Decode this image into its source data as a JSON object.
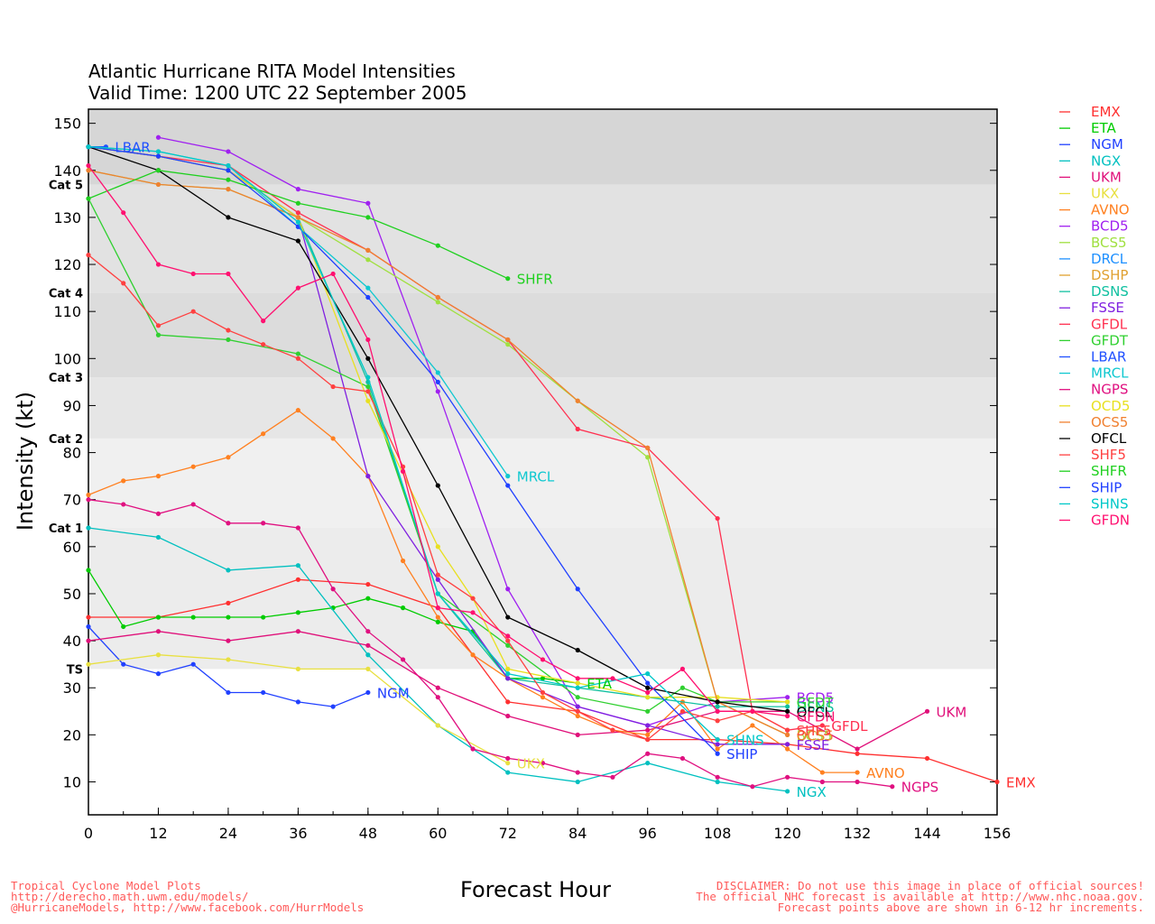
{
  "title_line1": "Atlantic Hurricane RITA Model Intensities",
  "title_line2": "Valid Time: 1200 UTC 22 September 2005",
  "footer_left": [
    "Tropical Cyclone Model Plots",
    "http://derecho.math.uwm.edu/models/",
    "@HurricaneModels, http://www.facebook.com/HurrModels"
  ],
  "footer_right": [
    "DISCLAIMER: Do not use this image in place of official sources!",
    "The official NHC forecast is available at http://www.nhc.noaa.gov.",
    "Forecast points above are shown in 6-12 hr increments."
  ],
  "chart_data": {
    "type": "line",
    "title": "Atlantic Hurricane RITA Model Intensities",
    "subtitle": "Valid Time: 1200 UTC 22 September 2005",
    "xlabel": "Forecast Hour",
    "ylabel": "Intensity (kt)",
    "xlim": [
      0,
      156
    ],
    "ylim": [
      3,
      153
    ],
    "xticks": [
      0,
      12,
      24,
      36,
      48,
      60,
      72,
      84,
      96,
      108,
      120,
      132,
      144,
      156
    ],
    "yticks": [
      10,
      20,
      30,
      40,
      50,
      60,
      70,
      80,
      90,
      100,
      110,
      120,
      130,
      140,
      150
    ],
    "categories": [
      {
        "label": "TS",
        "lo": 34,
        "hi": 64,
        "color": "#ececec"
      },
      {
        "label": "Cat 1",
        "lo": 64,
        "hi": 83,
        "color": "#f0f0f0"
      },
      {
        "label": "Cat 2",
        "lo": 83,
        "hi": 96,
        "color": "#e6e6e6"
      },
      {
        "label": "Cat 3",
        "lo": 96,
        "hi": 114,
        "color": "#dcdcdc"
      },
      {
        "label": "Cat 4",
        "lo": 114,
        "hi": 137,
        "color": "#e2e2e2"
      },
      {
        "label": "Cat 5",
        "lo": 137,
        "hi": 153,
        "color": "#d6d6d6"
      }
    ],
    "category_labels": [
      {
        "label": "TS",
        "y": 34
      },
      {
        "label": "Cat 1",
        "y": 64
      },
      {
        "label": "Cat 2",
        "y": 83
      },
      {
        "label": "Cat 3",
        "y": 96
      },
      {
        "label": "Cat 4",
        "y": 114
      },
      {
        "label": "Cat 5",
        "y": 137
      }
    ],
    "series": [
      {
        "name": "EMX",
        "color": "#ff3030",
        "label": "EMX",
        "x": [
          0,
          12,
          24,
          36,
          48,
          60,
          72,
          84,
          96,
          108,
          120,
          132,
          144,
          156
        ],
        "y": [
          45,
          45,
          48,
          53,
          52,
          47,
          27,
          25,
          19,
          19,
          18,
          16,
          15,
          10
        ]
      },
      {
        "name": "ETA",
        "color": "#00cc00",
        "label": "ETA",
        "x": [
          0,
          6,
          12,
          18,
          24,
          30,
          36,
          42,
          48,
          54,
          60,
          66,
          72,
          78,
          84
        ],
        "y": [
          55,
          43,
          45,
          45,
          45,
          45,
          46,
          47,
          49,
          47,
          44,
          42,
          32,
          32,
          31
        ]
      },
      {
        "name": "NGM",
        "color": "#2040ff",
        "label": "NGM",
        "x": [
          0,
          6,
          12,
          18,
          24,
          30,
          36,
          42,
          48
        ],
        "y": [
          43,
          35,
          33,
          35,
          29,
          29,
          27,
          26,
          29
        ]
      },
      {
        "name": "NGX",
        "color": "#00c0c0",
        "label": "NGX",
        "x": [
          0,
          12,
          24,
          36,
          48,
          60,
          72,
          84,
          96,
          108,
          120
        ],
        "y": [
          64,
          62,
          55,
          56,
          37,
          22,
          12,
          10,
          14,
          10,
          8
        ]
      },
      {
        "name": "UKM",
        "color": "#e0107a",
        "label": "UKM",
        "x": [
          0,
          12,
          24,
          36,
          48,
          60,
          72,
          84,
          96,
          108,
          120,
          132,
          144
        ],
        "y": [
          40,
          42,
          40,
          42,
          39,
          30,
          24,
          20,
          21,
          25,
          25,
          17,
          25
        ]
      },
      {
        "name": "UKX",
        "color": "#e8e040",
        "label": "UKX",
        "x": [
          0,
          12,
          24,
          36,
          48,
          60,
          72
        ],
        "y": [
          35,
          37,
          36,
          34,
          34,
          22,
          14
        ]
      },
      {
        "name": "AVNO",
        "color": "#ff8020",
        "label": "AVNO",
        "x": [
          0,
          6,
          12,
          18,
          24,
          30,
          36,
          42,
          48,
          54,
          60,
          66,
          72,
          78,
          84,
          90,
          96,
          102,
          108,
          114,
          120,
          126,
          132
        ],
        "y": [
          71,
          74,
          75,
          77,
          79,
          84,
          89,
          83,
          75,
          57,
          45,
          37,
          32,
          28,
          24,
          21,
          20,
          27,
          17,
          22,
          17,
          12,
          12
        ]
      },
      {
        "name": "BCD5",
        "color": "#a020f0",
        "label": "BCD5",
        "x": [
          12,
          24,
          36,
          48,
          60,
          72,
          84,
          96,
          108,
          120
        ],
        "y": [
          147,
          144,
          136,
          133,
          93,
          51,
          26,
          22,
          27,
          28
        ]
      },
      {
        "name": "BCS5",
        "color": "#a0e040",
        "label": "BCS5",
        "x": [
          0,
          12,
          24,
          36,
          48,
          60,
          72,
          84,
          96,
          108,
          120
        ],
        "y": [
          140,
          137,
          136,
          130,
          121,
          112,
          103,
          91,
          79,
          27,
          20
        ]
      },
      {
        "name": "DRCL",
        "color": "#1e90ff",
        "label": "",
        "x": [],
        "y": []
      },
      {
        "name": "DSHP",
        "color": "#e0a030",
        "label": "",
        "x": [],
        "y": []
      },
      {
        "name": "DSNS",
        "color": "#10c0a0",
        "label": "DSNS",
        "x": [
          0,
          12,
          24,
          36,
          48,
          60,
          72,
          84,
          96,
          108,
          120
        ],
        "y": [
          145,
          143,
          140,
          130,
          95,
          50,
          32,
          30,
          28,
          26,
          26
        ]
      },
      {
        "name": "FSSE",
        "color": "#8020e0",
        "label": "FSSE",
        "x": [
          0,
          12,
          24,
          36,
          48,
          60,
          72,
          84,
          96,
          108,
          120
        ],
        "y": [
          145,
          143,
          140,
          130,
          75,
          53,
          32,
          26,
          22,
          18,
          18
        ]
      },
      {
        "name": "GFDL",
        "color": "#ff3050",
        "label": "GFDL",
        "x": [
          0,
          12,
          24,
          36,
          48,
          60,
          72,
          84,
          96,
          108,
          114,
          120,
          126
        ],
        "y": [
          145,
          143,
          141,
          131,
          123,
          113,
          104,
          85,
          81,
          66,
          25,
          21,
          22
        ]
      },
      {
        "name": "GFDT",
        "color": "#30d030",
        "label": "GFDT",
        "x": [
          0,
          12,
          24,
          36,
          48,
          60,
          72,
          84,
          96,
          102,
          108,
          120
        ],
        "y": [
          134,
          105,
          104,
          101,
          94,
          50,
          39,
          28,
          25,
          30,
          27,
          27
        ]
      },
      {
        "name": "LBAR",
        "color": "#2050ff",
        "label": "LBAR",
        "x": [
          0,
          3
        ],
        "y": [
          145,
          145
        ]
      },
      {
        "name": "MRCL",
        "color": "#10c8d0",
        "label": "MRCL",
        "x": [
          0,
          12,
          24,
          36,
          48,
          60,
          72
        ],
        "y": [
          145,
          144,
          141,
          128,
          115,
          97,
          75
        ]
      },
      {
        "name": "NGPS",
        "color": "#e01080",
        "label": "NGPS",
        "x": [
          0,
          6,
          12,
          18,
          24,
          30,
          36,
          42,
          48,
          54,
          60,
          66,
          72,
          78,
          84,
          90,
          96,
          102,
          108,
          114,
          120,
          126,
          132,
          138
        ],
        "y": [
          70,
          69,
          67,
          69,
          65,
          65,
          64,
          51,
          42,
          36,
          28,
          17,
          15,
          14,
          12,
          11,
          16,
          15,
          11,
          9,
          11,
          10,
          10,
          9
        ]
      },
      {
        "name": "OCD5",
        "color": "#e8e020",
        "label": "",
        "x": [
          0,
          12,
          24,
          36,
          48,
          60,
          66,
          72,
          84,
          96,
          108,
          120
        ],
        "y": [
          145,
          143,
          140,
          130,
          91,
          60,
          49,
          34,
          31,
          28,
          28,
          27
        ]
      },
      {
        "name": "OCS5",
        "color": "#f08030",
        "label": "OCS5",
        "x": [
          0,
          12,
          24,
          36,
          48,
          60,
          72,
          84,
          96,
          108,
          120
        ],
        "y": [
          140,
          137,
          136,
          130,
          123,
          113,
          104,
          91,
          81,
          27,
          20
        ]
      },
      {
        "name": "OFCL",
        "color": "#000000",
        "label": "OFCL",
        "x": [
          0,
          12,
          24,
          36,
          48,
          60,
          72,
          84,
          96,
          108,
          120
        ],
        "y": [
          145,
          140,
          130,
          125,
          100,
          73,
          45,
          38,
          30,
          27,
          25
        ]
      },
      {
        "name": "SHF5",
        "color": "#ff4040",
        "label": "SHF5",
        "x": [
          0,
          6,
          12,
          18,
          24,
          30,
          36,
          42,
          48,
          54,
          60,
          66,
          72,
          78,
          84,
          90,
          96,
          102,
          108,
          114,
          120
        ],
        "y": [
          122,
          116,
          107,
          110,
          106,
          103,
          100,
          94,
          93,
          77,
          54,
          49,
          40,
          29,
          25,
          21,
          19,
          25,
          23,
          25,
          21
        ]
      },
      {
        "name": "SHFR",
        "color": "#20d020",
        "label": "SHFR",
        "x": [
          0,
          12,
          24,
          36,
          48,
          60,
          72
        ],
        "y": [
          134,
          140,
          138,
          133,
          130,
          124,
          117
        ]
      },
      {
        "name": "SHIP",
        "color": "#2040ff",
        "label": "SHIP",
        "x": [
          0,
          12,
          24,
          36,
          48,
          60,
          72,
          84,
          96,
          108
        ],
        "y": [
          145,
          143,
          140,
          128,
          113,
          95,
          73,
          51,
          31,
          16
        ]
      },
      {
        "name": "SHNS",
        "color": "#00c8c8",
        "label": "SHNS",
        "x": [
          0,
          12,
          24,
          36,
          48,
          60,
          72,
          84,
          96,
          108
        ],
        "y": [
          145,
          144,
          141,
          129,
          96,
          50,
          33,
          30,
          33,
          19
        ]
      },
      {
        "name": "GFDN",
        "color": "#ff1070",
        "label": "GFDN",
        "x": [
          0,
          6,
          12,
          18,
          24,
          30,
          36,
          42,
          48,
          54,
          60,
          66,
          72,
          78,
          84,
          90,
          96,
          102,
          108,
          114,
          120
        ],
        "y": [
          141,
          131,
          120,
          118,
          118,
          108,
          115,
          118,
          104,
          76,
          47,
          46,
          41,
          36,
          32,
          32,
          29,
          34,
          25,
          25,
          24
        ]
      }
    ]
  }
}
